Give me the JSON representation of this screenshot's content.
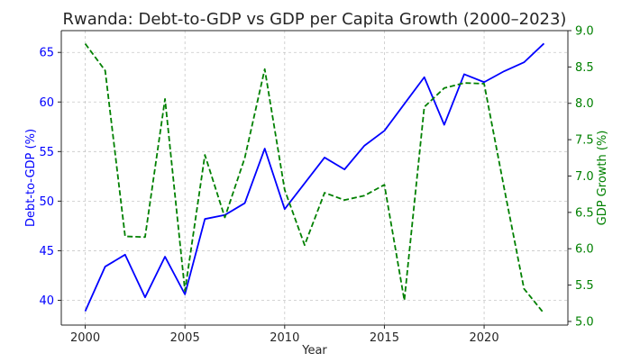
{
  "chart_data": {
    "type": "line",
    "title": "Rwanda: Debt-to-GDP vs GDP per Capita Growth (2000–2023)",
    "xlabel": "Year",
    "x": [
      2000,
      2001,
      2002,
      2003,
      2004,
      2005,
      2006,
      2007,
      2008,
      2009,
      2010,
      2011,
      2012,
      2013,
      2014,
      2015,
      2016,
      2017,
      2018,
      2019,
      2020,
      2021,
      2022,
      2023
    ],
    "xlim": [
      1998.8,
      2024.2
    ],
    "xticks": [
      2000,
      2005,
      2010,
      2015,
      2020
    ],
    "grid": true,
    "left_axis": {
      "label": "Debt-to-GDP (%)",
      "color": "#0000ff",
      "ylim": [
        37.5,
        67.2
      ],
      "ticks": [
        40,
        45,
        50,
        55,
        60,
        65
      ]
    },
    "right_axis": {
      "label": "GDP Growth (%)",
      "color": "#008000",
      "ylim": [
        4.95,
        9.0
      ],
      "ticks": [
        "5.0",
        "5.5",
        "6.0",
        "6.5",
        "7.0",
        "7.5",
        "8.0",
        "8.5",
        "9.0"
      ]
    },
    "series": [
      {
        "axis": "left",
        "style": "solid",
        "color": "#0000ff",
        "values": [
          38.9,
          43.4,
          44.6,
          40.3,
          44.4,
          40.6,
          48.2,
          48.6,
          49.8,
          55.3,
          49.2,
          51.8,
          54.4,
          53.2,
          55.6,
          57.1,
          59.8,
          62.5,
          57.7,
          62.8,
          62.0,
          63.1,
          64.0,
          65.9
        ]
      },
      {
        "axis": "right",
        "style": "dashed",
        "color": "#008000",
        "values": [
          8.82,
          8.45,
          6.17,
          6.16,
          8.06,
          5.42,
          7.29,
          6.43,
          7.25,
          8.47,
          6.81,
          6.05,
          6.77,
          6.67,
          6.73,
          6.88,
          5.29,
          7.95,
          8.21,
          8.28,
          8.27,
          6.84,
          5.45,
          5.11
        ]
      }
    ]
  }
}
